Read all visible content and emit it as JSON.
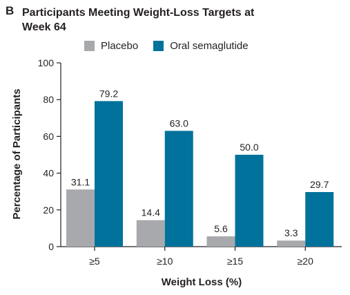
{
  "panel_label": "B",
  "chart_data": {
    "type": "bar",
    "title": "Participants Meeting Weight-Loss Targets at Week 64",
    "xlabel": "Weight Loss (%)",
    "ylabel": "Percentage of Participants",
    "ylim": [
      0,
      100
    ],
    "yticks": [
      0,
      20,
      40,
      60,
      80,
      100
    ],
    "categories": [
      "≥5",
      "≥10",
      "≥15",
      "≥20"
    ],
    "series": [
      {
        "name": "Placebo",
        "color": "#a7a9ac",
        "values": [
          31.1,
          14.4,
          5.6,
          3.3
        ],
        "labels": [
          "31.1",
          "14.4",
          "5.6",
          "3.3"
        ]
      },
      {
        "name": "Oral semaglutide",
        "color": "#00729b",
        "values": [
          79.2,
          63.0,
          50.0,
          29.7
        ],
        "labels": [
          "79.2",
          "63.0",
          "50.0",
          "29.7"
        ]
      }
    ],
    "grid": false,
    "legend_position": "top"
  }
}
